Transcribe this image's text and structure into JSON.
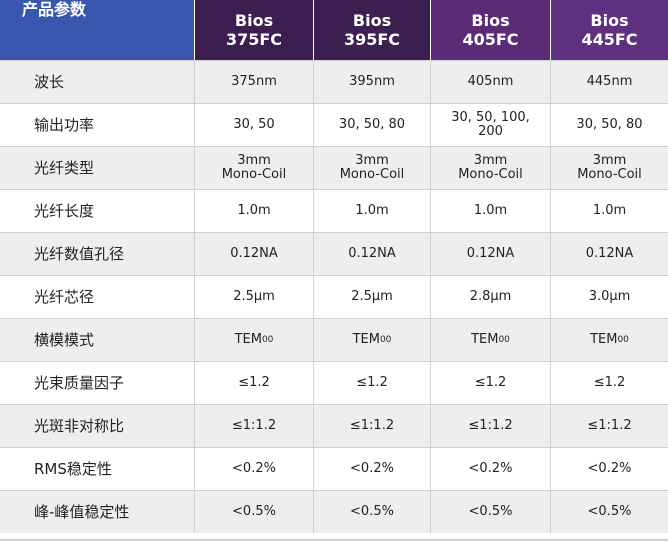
{
  "header": {
    "label": "产品参数",
    "models": [
      {
        "line1": "Bios",
        "line2": "375FC"
      },
      {
        "line1": "Bios",
        "line2": "395FC"
      },
      {
        "line1": "Bios",
        "line2": "405FC"
      },
      {
        "line1": "Bios",
        "line2": "445FC"
      }
    ]
  },
  "rows": [
    {
      "label": "波长",
      "values": [
        "375nm",
        "395nm",
        "405nm",
        "445nm"
      ]
    },
    {
      "label": "输出功率",
      "values": [
        "30, 50",
        "30, 50, 80",
        "30, 50, 100,\n200",
        "30, 50, 80"
      ]
    },
    {
      "label": "光纤类型",
      "values": [
        "3mm\nMono-Coil",
        "3mm\nMono-Coil",
        "3mm\nMono-Coil",
        "3mm\nMono-Coil"
      ]
    },
    {
      "label": "光纤长度",
      "values": [
        "1.0m",
        "1.0m",
        "1.0m",
        "1.0m"
      ]
    },
    {
      "label": "光纤数值孔径",
      "values": [
        "0.12NA",
        "0.12NA",
        "0.12NA",
        "0.12NA"
      ]
    },
    {
      "label": "光纤芯径",
      "values": [
        "2.5μm",
        "2.5μm",
        "2.8μm",
        "3.0μm"
      ]
    },
    {
      "label": "横模模式",
      "values": [
        "TEM",
        "TEM",
        "TEM",
        "TEM"
      ],
      "sub": "00"
    },
    {
      "label": "光束质量因子",
      "values": [
        "≤1.2",
        "≤1.2",
        "≤1.2",
        "≤1.2"
      ]
    },
    {
      "label": "光斑非对称比",
      "values": [
        "≤1:1.2",
        "≤1:1.2",
        "≤1:1.2",
        "≤1:1.2"
      ]
    },
    {
      "label": "RMS稳定性",
      "values": [
        "<0.2%",
        "<0.2%",
        "<0.2%",
        "<0.2%"
      ]
    },
    {
      "label": "峰-峰值稳定性",
      "values": [
        "<0.5%",
        "<0.5%",
        "<0.5%",
        "<0.5%"
      ]
    }
  ],
  "colors": {
    "header_label_bg": "#3a57b0",
    "header_model_bg": [
      "#3c1f50",
      "#3d2052",
      "#5b2b77",
      "#5f3080"
    ],
    "shaded_row_bg": "#eeeeee"
  }
}
